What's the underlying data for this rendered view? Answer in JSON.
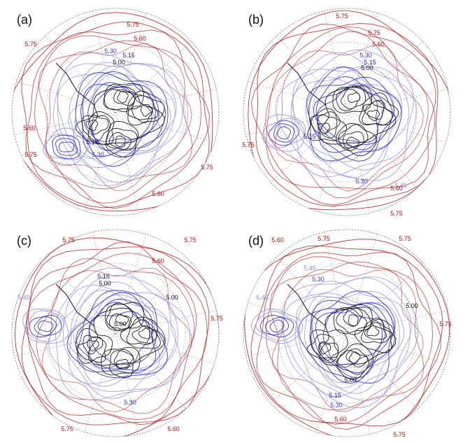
{
  "panels": [
    {
      "id": "a",
      "label": "(a)",
      "contour_labels": [
        {
          "text": "5.75",
          "color": "#b01010"
        },
        {
          "text": "5.60",
          "color": "#b01010"
        },
        {
          "text": "5.75",
          "color": "#b01010"
        },
        {
          "text": "5.30",
          "color": "#3a3ad0"
        },
        {
          "text": "5.15",
          "color": "#1a1aa0"
        },
        {
          "text": "5.00",
          "color": "#111111"
        },
        {
          "text": "5.60",
          "color": "#b01010"
        },
        {
          "text": "5.75",
          "color": "#b01010"
        },
        {
          "text": "5.15",
          "color": "#1a1aa0"
        },
        {
          "text": "5.30",
          "color": "#3a3ad0"
        },
        {
          "text": "5.75",
          "color": "#b01010"
        },
        {
          "text": "5.60",
          "color": "#b01010"
        }
      ]
    },
    {
      "id": "b",
      "label": "(b)",
      "contour_labels": [
        {
          "text": "5.75",
          "color": "#b01010"
        },
        {
          "text": "5.75",
          "color": "#b01010"
        },
        {
          "text": "5.60",
          "color": "#b01010"
        },
        {
          "text": "5.30",
          "color": "#3a3ad0"
        },
        {
          "text": "5.15",
          "color": "#1a1aa0"
        },
        {
          "text": "5.00",
          "color": "#111111"
        },
        {
          "text": "5.75",
          "color": "#b01010"
        },
        {
          "text": "5.15",
          "color": "#1a1aa0"
        },
        {
          "text": "5.30",
          "color": "#3a3ad0"
        },
        {
          "text": "5.45",
          "color": "#8a8ae0"
        },
        {
          "text": "5.60",
          "color": "#b01010"
        },
        {
          "text": "5.75",
          "color": "#b01010"
        }
      ]
    },
    {
      "id": "c",
      "label": "(c)",
      "contour_labels": [
        {
          "text": "5.75",
          "color": "#b01010"
        },
        {
          "text": "5.75",
          "color": "#b01010"
        },
        {
          "text": "5.60",
          "color": "#b01010"
        },
        {
          "text": "5.15",
          "color": "#1a1aa0"
        },
        {
          "text": "5.00",
          "color": "#111111"
        },
        {
          "text": "5.45",
          "color": "#8a8ae0"
        },
        {
          "text": "5.75",
          "color": "#b01010"
        },
        {
          "text": "5.00",
          "color": "#111111"
        },
        {
          "text": "5.00",
          "color": "#111111"
        },
        {
          "text": "5.30",
          "color": "#3a3ad0"
        },
        {
          "text": "5.60",
          "color": "#b01010"
        },
        {
          "text": "5.75",
          "color": "#b01010"
        }
      ]
    },
    {
      "id": "d",
      "label": "(d)",
      "contour_labels": [
        {
          "text": "5.60",
          "color": "#b01010"
        },
        {
          "text": "5.75",
          "color": "#b01010"
        },
        {
          "text": "5.75",
          "color": "#b01010"
        },
        {
          "text": "5.45",
          "color": "#8a8ae0"
        },
        {
          "text": "5.30",
          "color": "#3a3ad0"
        },
        {
          "text": "5.45",
          "color": "#8a8ae0"
        },
        {
          "text": "5.00",
          "color": "#111111"
        },
        {
          "text": "5.75",
          "color": "#b01010"
        },
        {
          "text": "5.00",
          "color": "#111111"
        },
        {
          "text": "5.15",
          "color": "#1a1aa0"
        },
        {
          "text": "5.30",
          "color": "#3a3ad0"
        },
        {
          "text": "5.60",
          "color": "#b01010"
        },
        {
          "text": "5.75",
          "color": "#b01010"
        }
      ]
    }
  ],
  "colors": {
    "high_contour": "#b01010",
    "mid_contour": "#3a3ad0",
    "light_contour": "#9a9ae6",
    "low_contour": "#1e1e1e",
    "coastline": "#222222",
    "grid": "#777777"
  }
}
